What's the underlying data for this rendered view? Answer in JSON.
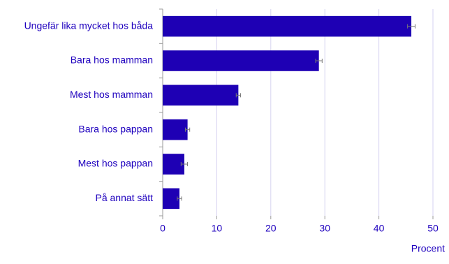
{
  "chart_data": {
    "type": "bar",
    "orientation": "horizontal",
    "categories": [
      "Ungefär lika mycket hos båda",
      "Bara hos mamman",
      "Mest hos mamman",
      "Bara hos pappan",
      "Mest hos pappan",
      "På annat sätt"
    ],
    "values": [
      46,
      28.9,
      14,
      4.6,
      4,
      3.1
    ],
    "errors": [
      0.7,
      0.6,
      0.4,
      0.4,
      0.6,
      0.4
    ],
    "color": "#1e00b4",
    "xlabel": "Procent",
    "xlim": [
      0,
      50
    ],
    "xticks": [
      0,
      10,
      20,
      30,
      40,
      50
    ],
    "grid": true
  }
}
